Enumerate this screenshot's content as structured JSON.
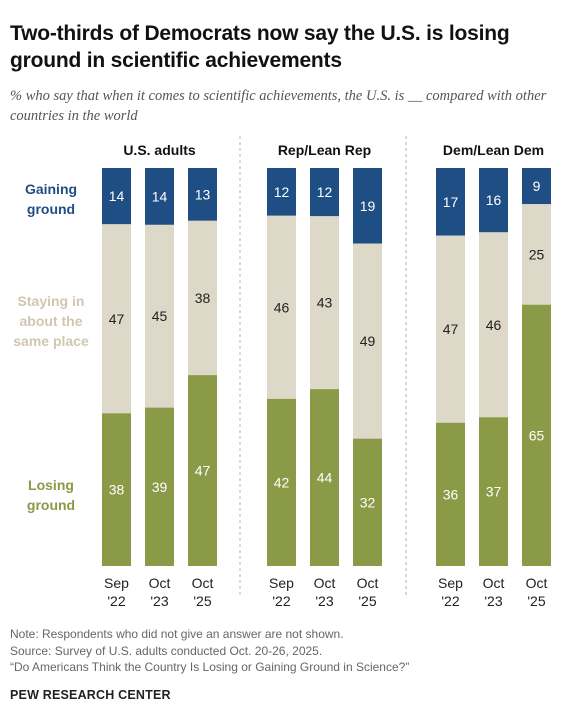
{
  "title": "Two-thirds of Democrats now say the U.S. is losing ground in scientific achievements",
  "subtitle": "% who say that when it comes to scientific achievements, the U.S. is __ compared with other countries in the world",
  "chart_data": {
    "type": "bar",
    "stacked": true,
    "orientation": "vertical",
    "categories": [
      "Sep '22",
      "Oct '23",
      "Oct '25"
    ],
    "category_lines": [
      [
        "Sep",
        "'22"
      ],
      [
        "Oct",
        "'23"
      ],
      [
        "Oct",
        "'25"
      ]
    ],
    "colors": {
      "gaining": "#1f4e85",
      "staying": "#ddd8c7",
      "losing": "#8b9a46"
    },
    "series_labels": [
      {
        "key": "gaining",
        "lines": [
          "Gaining",
          "ground"
        ],
        "color": "#1f4e85"
      },
      {
        "key": "staying",
        "lines": [
          "Staying in",
          "about the",
          "same place"
        ],
        "color": "#cfc7ae"
      },
      {
        "key": "losing",
        "lines": [
          "Losing",
          "ground"
        ],
        "color": "#8b9a46"
      }
    ],
    "panels": [
      {
        "title": "U.S. adults",
        "series": [
          {
            "name": "Gaining ground",
            "key": "gaining",
            "values": [
              14,
              14,
              13
            ]
          },
          {
            "name": "Staying in about the same place",
            "key": "staying",
            "values": [
              47,
              45,
              38
            ]
          },
          {
            "name": "Losing ground",
            "key": "losing",
            "values": [
              38,
              39,
              47
            ]
          }
        ]
      },
      {
        "title": "Rep/Lean Rep",
        "series": [
          {
            "name": "Gaining ground",
            "key": "gaining",
            "values": [
              12,
              12,
              19
            ]
          },
          {
            "name": "Staying in about the same place",
            "key": "staying",
            "values": [
              46,
              43,
              49
            ]
          },
          {
            "name": "Losing ground",
            "key": "losing",
            "values": [
              42,
              44,
              32
            ]
          }
        ]
      },
      {
        "title": "Dem/Lean Dem",
        "series": [
          {
            "name": "Gaining ground",
            "key": "gaining",
            "values": [
              17,
              16,
              9
            ]
          },
          {
            "name": "Staying in about the same place",
            "key": "staying",
            "values": [
              47,
              46,
              25
            ]
          },
          {
            "name": "Losing ground",
            "key": "losing",
            "values": [
              36,
              37,
              65
            ]
          }
        ]
      }
    ],
    "ylim": [
      0,
      100
    ],
    "grid": false,
    "legend": "left, inline with segments"
  },
  "notes": [
    "Note: Respondents who did not give an answer are not shown.",
    "Source: Survey of U.S. adults conducted Oct. 20-26, 2025.",
    "“Do Americans Think the Country Is Losing or Gaining Ground in Science?”"
  ],
  "credit": "PEW RESEARCH CENTER"
}
